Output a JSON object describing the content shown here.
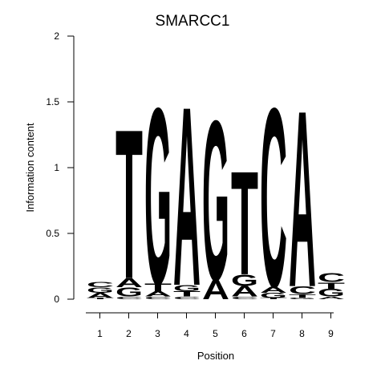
{
  "chart_data": {
    "type": "sequence-logo",
    "title": "SMARCC1",
    "xlabel": "Position",
    "ylabel": "Information content",
    "ylim": [
      0,
      2
    ],
    "yticks": [
      "0",
      "0.5",
      "1",
      "1.5",
      "2"
    ],
    "positions": [
      "1",
      "2",
      "3",
      "4",
      "5",
      "6",
      "7",
      "8",
      "9"
    ],
    "colors": {
      "A": "#00ee00",
      "C": "#0000ee",
      "G": "#ffa500",
      "T": "#ff0000"
    },
    "stacks": [
      [
        {
          "base": "T",
          "value": 0.01
        },
        {
          "base": "A",
          "value": 0.04
        },
        {
          "base": "G",
          "value": 0.04
        },
        {
          "base": "C",
          "value": 0.04
        }
      ],
      [
        {
          "base": "C",
          "value": 0.02
        },
        {
          "base": "G",
          "value": 0.07
        },
        {
          "base": "A",
          "value": 0.07
        },
        {
          "base": "T",
          "value": 1.17
        }
      ],
      [
        {
          "base": "C",
          "value": 0.02
        },
        {
          "base": "A",
          "value": 0.04
        },
        {
          "base": "T",
          "value": 0.06
        },
        {
          "base": "G",
          "value": 1.38
        }
      ],
      [
        {
          "base": "C",
          "value": 0.02
        },
        {
          "base": "T",
          "value": 0.04
        },
        {
          "base": "G",
          "value": 0.05
        },
        {
          "base": "A",
          "value": 1.4
        }
      ],
      [
        {
          "base": "A",
          "value": 0.15
        },
        {
          "base": "G",
          "value": 1.25
        }
      ],
      [
        {
          "base": "C",
          "value": 0.02
        },
        {
          "base": "A",
          "value": 0.08
        },
        {
          "base": "G",
          "value": 0.09
        },
        {
          "base": "T",
          "value": 0.81
        }
      ],
      [
        {
          "base": "T",
          "value": 0.01
        },
        {
          "base": "G",
          "value": 0.04
        },
        {
          "base": "A",
          "value": 0.05
        },
        {
          "base": "C",
          "value": 1.4
        }
      ],
      [
        {
          "base": "G",
          "value": 0.01
        },
        {
          "base": "T",
          "value": 0.03
        },
        {
          "base": "C",
          "value": 0.06
        },
        {
          "base": "A",
          "value": 1.38
        }
      ],
      [
        {
          "base": "A",
          "value": 0.02
        },
        {
          "base": "G",
          "value": 0.06
        },
        {
          "base": "T",
          "value": 0.05
        },
        {
          "base": "C",
          "value": 0.07
        }
      ]
    ]
  }
}
